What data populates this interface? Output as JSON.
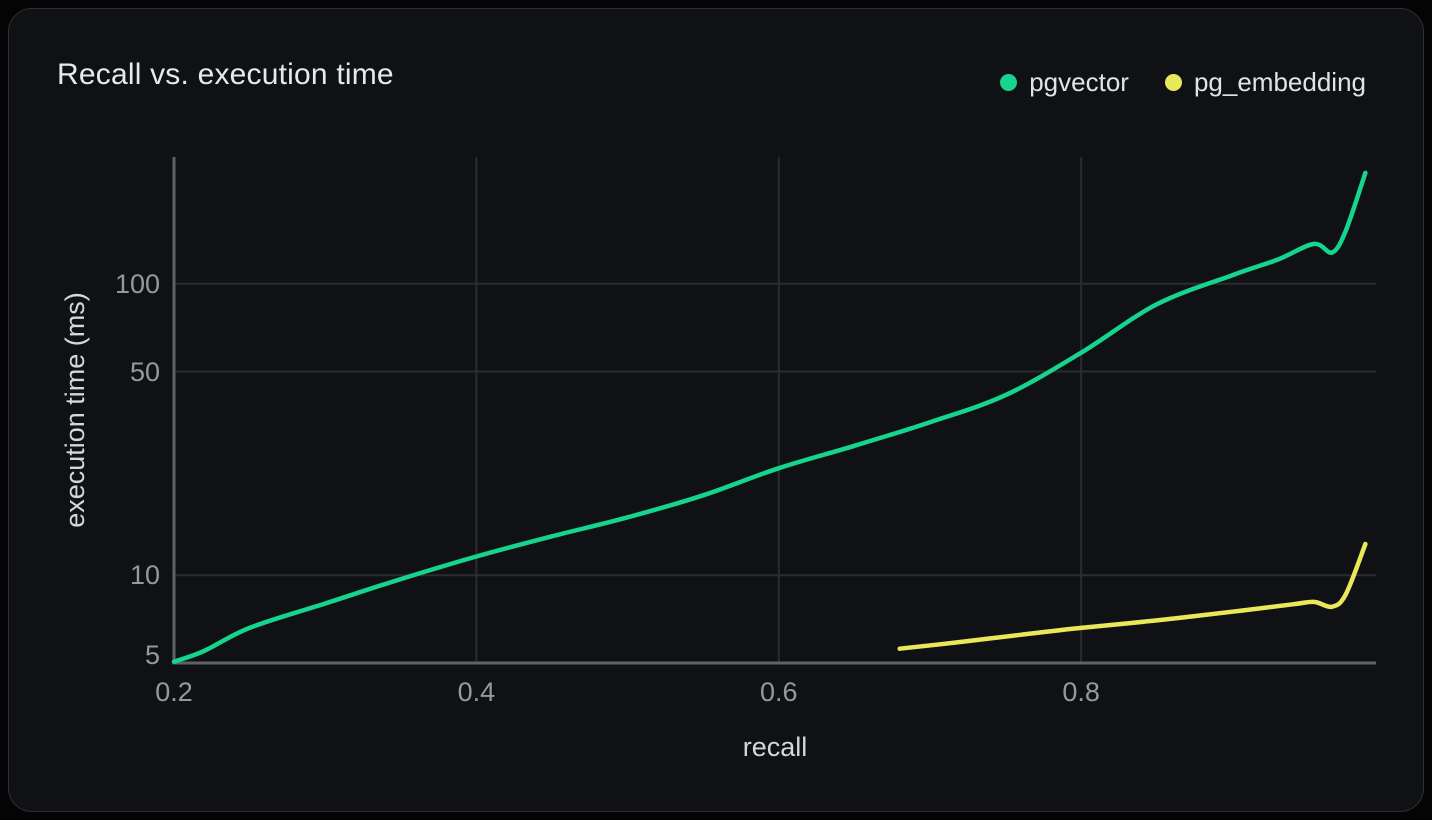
{
  "chart_data": {
    "type": "line",
    "title": "Recall vs. execution time",
    "xlabel": "recall",
    "ylabel": "execution time (ms)",
    "x_scale": "linear",
    "y_scale": "log",
    "xlim": [
      0.2,
      0.995
    ],
    "ylim": [
      5,
      270
    ],
    "x_tick_values": [
      0.2,
      0.4,
      0.6,
      0.8
    ],
    "y_tick_values": [
      100,
      50,
      10,
      5
    ],
    "grid": true,
    "legend_position": "top-right",
    "colors": {
      "page_background": "#040405",
      "card_background": "#101114",
      "card_border": "#2f3035",
      "grid_line": "#2a2c31",
      "axis_line": "#5e6169",
      "title_text": "#e8e9eb",
      "tick_text": "#97989e",
      "axis_label_text": "#d6d7d9",
      "legend_text": "#e2e3e5"
    },
    "series": [
      {
        "name": "pgvector",
        "color": "#16d48e",
        "points": [
          [
            0.2,
            5.05
          ],
          [
            0.22,
            5.5
          ],
          [
            0.25,
            6.6
          ],
          [
            0.3,
            8.0
          ],
          [
            0.35,
            9.7
          ],
          [
            0.4,
            11.6
          ],
          [
            0.45,
            13.6
          ],
          [
            0.5,
            15.8
          ],
          [
            0.55,
            18.8
          ],
          [
            0.6,
            23.3
          ],
          [
            0.65,
            27.8
          ],
          [
            0.7,
            33.5
          ],
          [
            0.75,
            41.5
          ],
          [
            0.8,
            58
          ],
          [
            0.85,
            85
          ],
          [
            0.9,
            107
          ],
          [
            0.93,
            121
          ],
          [
            0.954,
            137
          ],
          [
            0.966,
            128
          ],
          [
            0.975,
            152
          ],
          [
            0.988,
            240
          ]
        ]
      },
      {
        "name": "pg_embedding",
        "color": "#e9e75a",
        "points": [
          [
            0.68,
            5.6
          ],
          [
            0.72,
            5.9
          ],
          [
            0.76,
            6.25
          ],
          [
            0.8,
            6.6
          ],
          [
            0.85,
            7.0
          ],
          [
            0.9,
            7.5
          ],
          [
            0.94,
            7.95
          ],
          [
            0.954,
            8.1
          ],
          [
            0.966,
            7.8
          ],
          [
            0.975,
            8.6
          ],
          [
            0.988,
            12.8
          ]
        ]
      }
    ]
  }
}
